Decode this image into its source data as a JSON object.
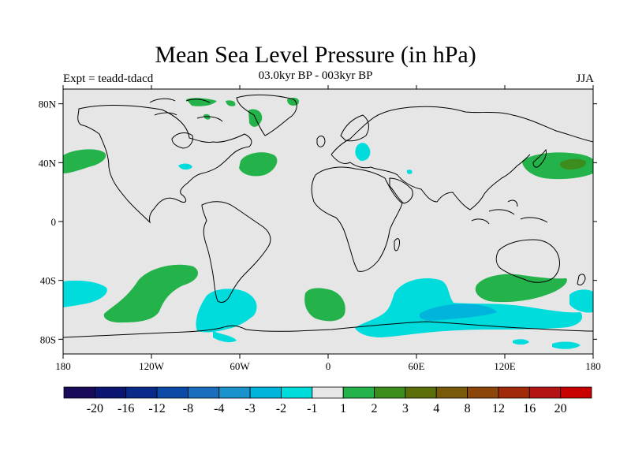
{
  "header": {
    "title": "Mean Sea Level Pressure (in hPa)",
    "experiment": "Expt = teadd-tdacd",
    "period": "03.0kyr BP - 003kyr BP",
    "season": "JJA"
  },
  "chart_data": {
    "type": "heatmap",
    "projection": "cylindrical-equidistant",
    "variable": "Mean Sea Level Pressure",
    "units": "hPa",
    "lon_range": [
      -180,
      180
    ],
    "lat_range": [
      -90,
      90
    ],
    "x_ticks": [
      {
        "lon": -180,
        "label": "180"
      },
      {
        "lon": -120,
        "label": "120W"
      },
      {
        "lon": -60,
        "label": "60W"
      },
      {
        "lon": 0,
        "label": "0"
      },
      {
        "lon": 60,
        "label": "60E"
      },
      {
        "lon": 120,
        "label": "120E"
      },
      {
        "lon": 180,
        "label": "180"
      }
    ],
    "y_ticks": [
      {
        "lat": 80,
        "label": "80N"
      },
      {
        "lat": 40,
        "label": "40N"
      },
      {
        "lat": 0,
        "label": "0"
      },
      {
        "lat": -40,
        "label": "40S"
      },
      {
        "lat": -80,
        "label": "80S"
      }
    ],
    "background_color": "#e6e6e6",
    "colorbar": {
      "colors": [
        "#1a0a5a",
        "#0a1672",
        "#0a2a8a",
        "#0a4aa6",
        "#1a6ebe",
        "#1a92cc",
        "#00b4dc",
        "#00dcdc",
        "#e6e6e6",
        "#24b24a",
        "#3c8c1e",
        "#5a6e0a",
        "#785a0a",
        "#8c460a",
        "#a02a0a",
        "#b41414",
        "#c80000"
      ],
      "labels": [
        "-20",
        "-16",
        "-12",
        "-8",
        "-4",
        "-3",
        "-2",
        "-1",
        "1",
        "2",
        "3",
        "4",
        "8",
        "12",
        "16",
        "20"
      ]
    },
    "anomaly_regions": [
      {
        "name": "north-pacific-east",
        "level": "1 to 2",
        "color": "#24b24a",
        "lon": [
          -180,
          -160
        ],
        "lat": [
          31,
          50
        ]
      },
      {
        "name": "central-north-atlantic",
        "level": "1 to 2",
        "color": "#24b24a",
        "lon": [
          -60,
          -34
        ],
        "lat": [
          29,
          45
        ]
      },
      {
        "name": "northwest-pacific",
        "level": "1 to 2",
        "color": "#24b24a",
        "lon": [
          130,
          180
        ],
        "lat": [
          27,
          48
        ]
      },
      {
        "name": "northwest-pacific-core",
        "level": "2 to 3",
        "color": "#3c8c1e",
        "lon": [
          162,
          177
        ],
        "lat": [
          34,
          42
        ]
      },
      {
        "name": "greenland-patches",
        "level": "1 to 2",
        "color": "#24b24a",
        "lon": [
          -80,
          -15
        ],
        "lat": [
          68,
          84
        ]
      },
      {
        "name": "black-sea",
        "level": "-2 to -1",
        "color": "#00dcdc",
        "lon": [
          16,
          28
        ],
        "lat": [
          36,
          52
        ]
      },
      {
        "name": "south-pacific",
        "level": "1 to 2",
        "color": "#24b24a",
        "lon": [
          -135,
          -80
        ],
        "lat": [
          -70,
          -30
        ]
      },
      {
        "name": "south-atlantic",
        "level": "1 to 2",
        "color": "#24b24a",
        "lon": [
          -15,
          5
        ],
        "lat": [
          -68,
          -44
        ]
      },
      {
        "name": "south-indian-ocean",
        "level": "1 to 2",
        "color": "#24b24a",
        "lon": [
          100,
          150
        ],
        "lat": [
          -55,
          -36
        ]
      },
      {
        "name": "southeast-pacific",
        "level": "-2 to -1",
        "color": "#00dcdc",
        "lon": [
          -180,
          -140
        ],
        "lat": [
          -65,
          -40
        ]
      },
      {
        "name": "drake-passage",
        "level": "-2 to -1",
        "color": "#00dcdc",
        "lon": [
          -90,
          -40
        ],
        "lat": [
          -82,
          -45
        ]
      },
      {
        "name": "southern-indian-ocean",
        "level": "-2 to -1",
        "color": "#00dcdc",
        "lon": [
          20,
          120
        ],
        "lat": [
          -80,
          -40
        ]
      },
      {
        "name": "southern-indian-ocean-core",
        "level": "-3 to -2",
        "color": "#00b4dc",
        "lon": [
          50,
          110
        ],
        "lat": [
          -70,
          -56
        ]
      },
      {
        "name": "antarctic-ross-sea",
        "level": "-2 to -1",
        "color": "#00dcdc",
        "lon": [
          155,
          180
        ],
        "lat": [
          -60,
          -45
        ]
      },
      {
        "name": "east-antarctica",
        "level": "-2 to -1",
        "color": "#00dcdc",
        "lon": [
          140,
          180
        ],
        "lat": [
          -88,
          -78
        ]
      }
    ]
  }
}
